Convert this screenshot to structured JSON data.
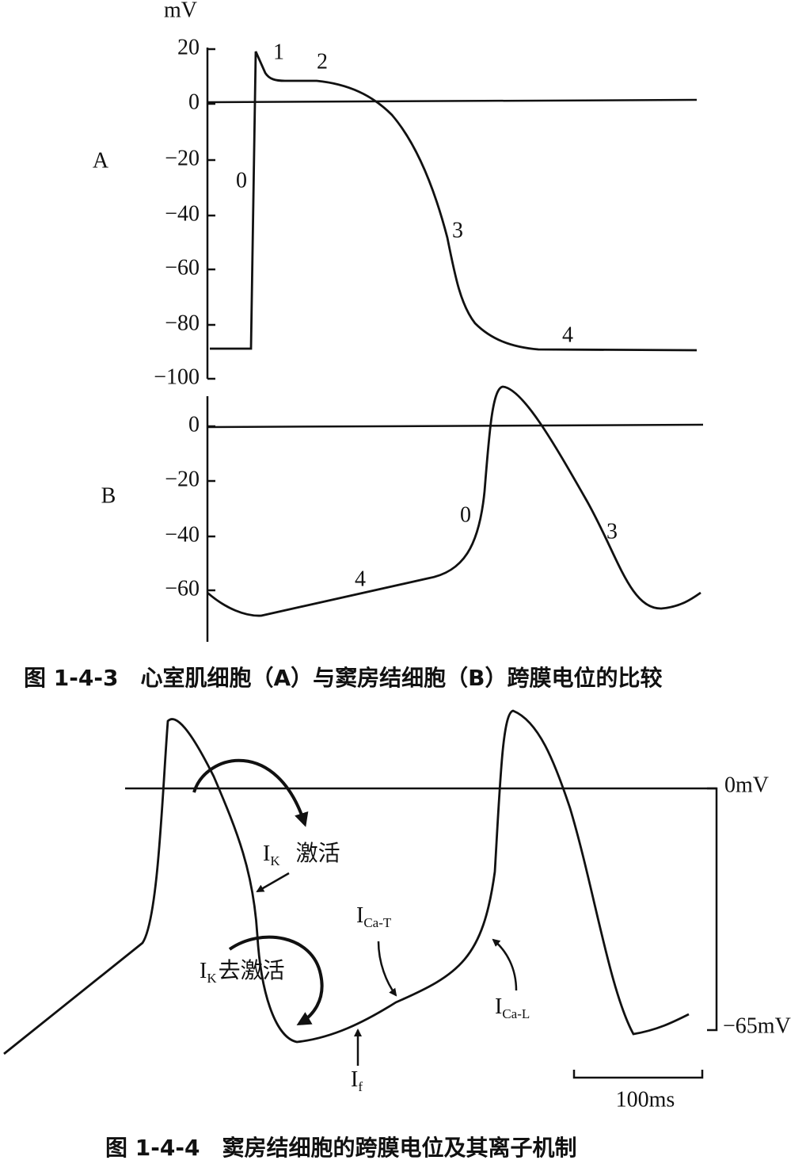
{
  "figure_a": {
    "unit": "mV",
    "panels": [
      {
        "label": "A",
        "yticks": [
          "20",
          "0",
          "−20",
          "−40",
          "−60",
          "−80",
          "−100"
        ],
        "phase_labels": [
          "1",
          "2",
          "0",
          "3",
          "4"
        ]
      },
      {
        "label": "B",
        "yticks": [
          "0",
          "−20",
          "−40",
          "−60"
        ],
        "phase_labels": [
          "4",
          "0",
          "3"
        ]
      }
    ],
    "caption": "图 1-4-3　心室肌细胞（A）与窦房结细胞（B）跨膜电位的比较"
  },
  "figure_b": {
    "top_label": "0mV",
    "bottom_label": "−65mV",
    "currents": [
      {
        "symbol": "I",
        "subscript": "K",
        "text": "激活"
      },
      {
        "symbol": "I",
        "subscript": "K",
        "text": "去激活"
      },
      {
        "symbol": "I",
        "subscript": "Ca-T"
      },
      {
        "symbol": "I",
        "subscript": "Ca-L"
      },
      {
        "symbol": "I",
        "subscript": "f"
      }
    ],
    "scale_bar": "100ms",
    "caption": "图 1-4-4　窦房结细胞的跨膜电位及其离子机制"
  }
}
